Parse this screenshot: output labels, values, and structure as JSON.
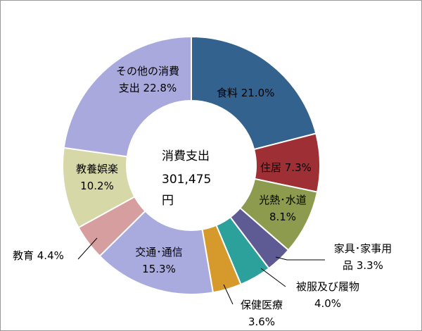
{
  "chart_data": {
    "type": "pie",
    "variant": "donut",
    "center_label": [
      "消費支出",
      "301,475",
      "円"
    ],
    "slices": [
      {
        "name": "食料",
        "value": 21.0,
        "color": "#33628f",
        "label_lines": [
          "食料 21.0%"
        ]
      },
      {
        "name": "住居",
        "value": 7.3,
        "color": "#9e3035",
        "label_lines": [
          "住居 7.3%"
        ]
      },
      {
        "name": "光熱･水道",
        "value": 8.1,
        "color": "#8d9b4f",
        "label_lines": [
          "光熱･水道",
          "8.1%"
        ]
      },
      {
        "name": "家具･家事用品",
        "value": 3.3,
        "color": "#5e5a93",
        "label_lines": [
          "家具･家事用",
          "品 3.3%"
        ]
      },
      {
        "name": "被服及び履物",
        "value": 4.0,
        "color": "#2ca09a",
        "label_lines": [
          "被服及び履物",
          "4.0%"
        ]
      },
      {
        "name": "保健医療",
        "value": 3.6,
        "color": "#d69a2c",
        "label_lines": [
          "保健医療",
          "3.6%"
        ]
      },
      {
        "name": "交通･通信",
        "value": 15.3,
        "color": "#a9aade",
        "label_lines": [
          "交通･通信",
          "15.3%"
        ]
      },
      {
        "name": "教育",
        "value": 4.4,
        "color": "#d79ea0",
        "label_lines": [
          "教育 4.4%"
        ]
      },
      {
        "name": "教養娯楽",
        "value": 10.2,
        "color": "#d6d8a7",
        "label_lines": [
          "教養娯楽",
          "10.2%"
        ]
      },
      {
        "name": "その他の消費支出",
        "value": 22.8,
        "color": "#aaa9dd",
        "label_lines": [
          "その他の消費",
          "支出 22.8%"
        ]
      }
    ]
  }
}
